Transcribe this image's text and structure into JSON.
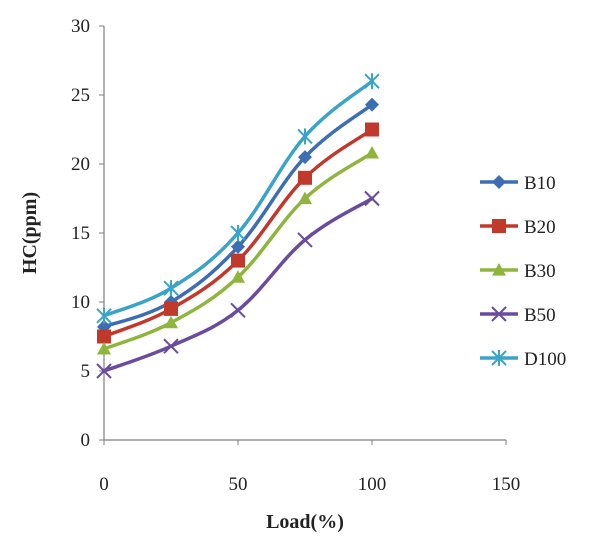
{
  "chart_data": {
    "type": "line",
    "title": "",
    "xlabel": "Load(%)",
    "ylabel": "HC(ppm)",
    "x": [
      0,
      25,
      50,
      75,
      100
    ],
    "xlim": [
      0,
      150
    ],
    "ylim": [
      0,
      30
    ],
    "xticks": [
      "0",
      "50",
      "100",
      "150"
    ],
    "yticks": [
      "0",
      "5",
      "10",
      "15",
      "20",
      "25",
      "30"
    ],
    "grid": false,
    "legend": "right",
    "series": [
      {
        "name": "B10",
        "values": [
          8.2,
          10.0,
          14.0,
          20.5,
          24.3
        ],
        "color": "#3c6eb4",
        "marker": "diamond"
      },
      {
        "name": "B20",
        "values": [
          7.5,
          9.5,
          13.0,
          19.0,
          22.5
        ],
        "color": "#c0392b",
        "marker": "square"
      },
      {
        "name": "B30",
        "values": [
          6.6,
          8.5,
          11.8,
          17.5,
          20.8
        ],
        "color": "#8fb53c",
        "marker": "triangle"
      },
      {
        "name": "B50",
        "values": [
          5.0,
          6.8,
          9.4,
          14.5,
          17.5
        ],
        "color": "#6a4c9c",
        "marker": "x"
      },
      {
        "name": "D100",
        "values": [
          9.0,
          11.0,
          15.0,
          22.0,
          26.0
        ],
        "color": "#3aa3c8",
        "marker": "star"
      }
    ]
  }
}
